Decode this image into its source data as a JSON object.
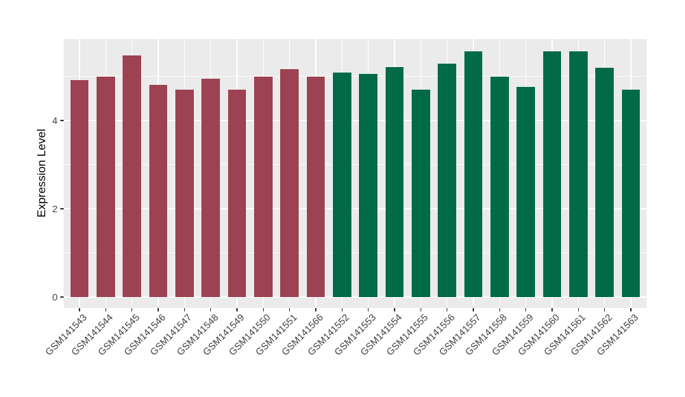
{
  "figure": {
    "background": "#FFFFFF"
  },
  "chart_data": {
    "type": "bar",
    "title": "",
    "xlabel": "",
    "ylabel": "Expression Level",
    "categories": [
      "GSM141543",
      "GSM141544",
      "GSM141545",
      "GSM141546",
      "GSM141547",
      "GSM141548",
      "GSM141549",
      "GSM141550",
      "GSM141551",
      "GSM141566",
      "GSM141552",
      "GSM141553",
      "GSM141554",
      "GSM141555",
      "GSM141556",
      "GSM141557",
      "GSM141558",
      "GSM141559",
      "GSM141560",
      "GSM141561",
      "GSM141562",
      "GSM141563"
    ],
    "values": [
      4.92,
      5.0,
      5.47,
      4.81,
      4.7,
      4.94,
      4.7,
      4.99,
      5.17,
      5.0,
      5.08,
      5.05,
      5.21,
      4.69,
      5.28,
      5.56,
      4.99,
      4.76,
      5.56,
      5.57,
      5.19,
      4.7
    ],
    "group_index": [
      0,
      0,
      0,
      0,
      0,
      0,
      0,
      0,
      0,
      0,
      1,
      1,
      1,
      1,
      1,
      1,
      1,
      1,
      1,
      1,
      1,
      1
    ],
    "group_colors": [
      "#9C4252",
      "#006B46"
    ],
    "ylim": [
      0,
      5.85
    ],
    "y_major_ticks": [
      0,
      2,
      4
    ],
    "y_minor_ticks": [
      1,
      3,
      5
    ],
    "x_tick_rotation_deg": 45,
    "grid": true,
    "legend": "none",
    "panel_background": "#EBEBEB",
    "gridline_color": "#FFFFFF",
    "axis_text_color": "#404040"
  }
}
